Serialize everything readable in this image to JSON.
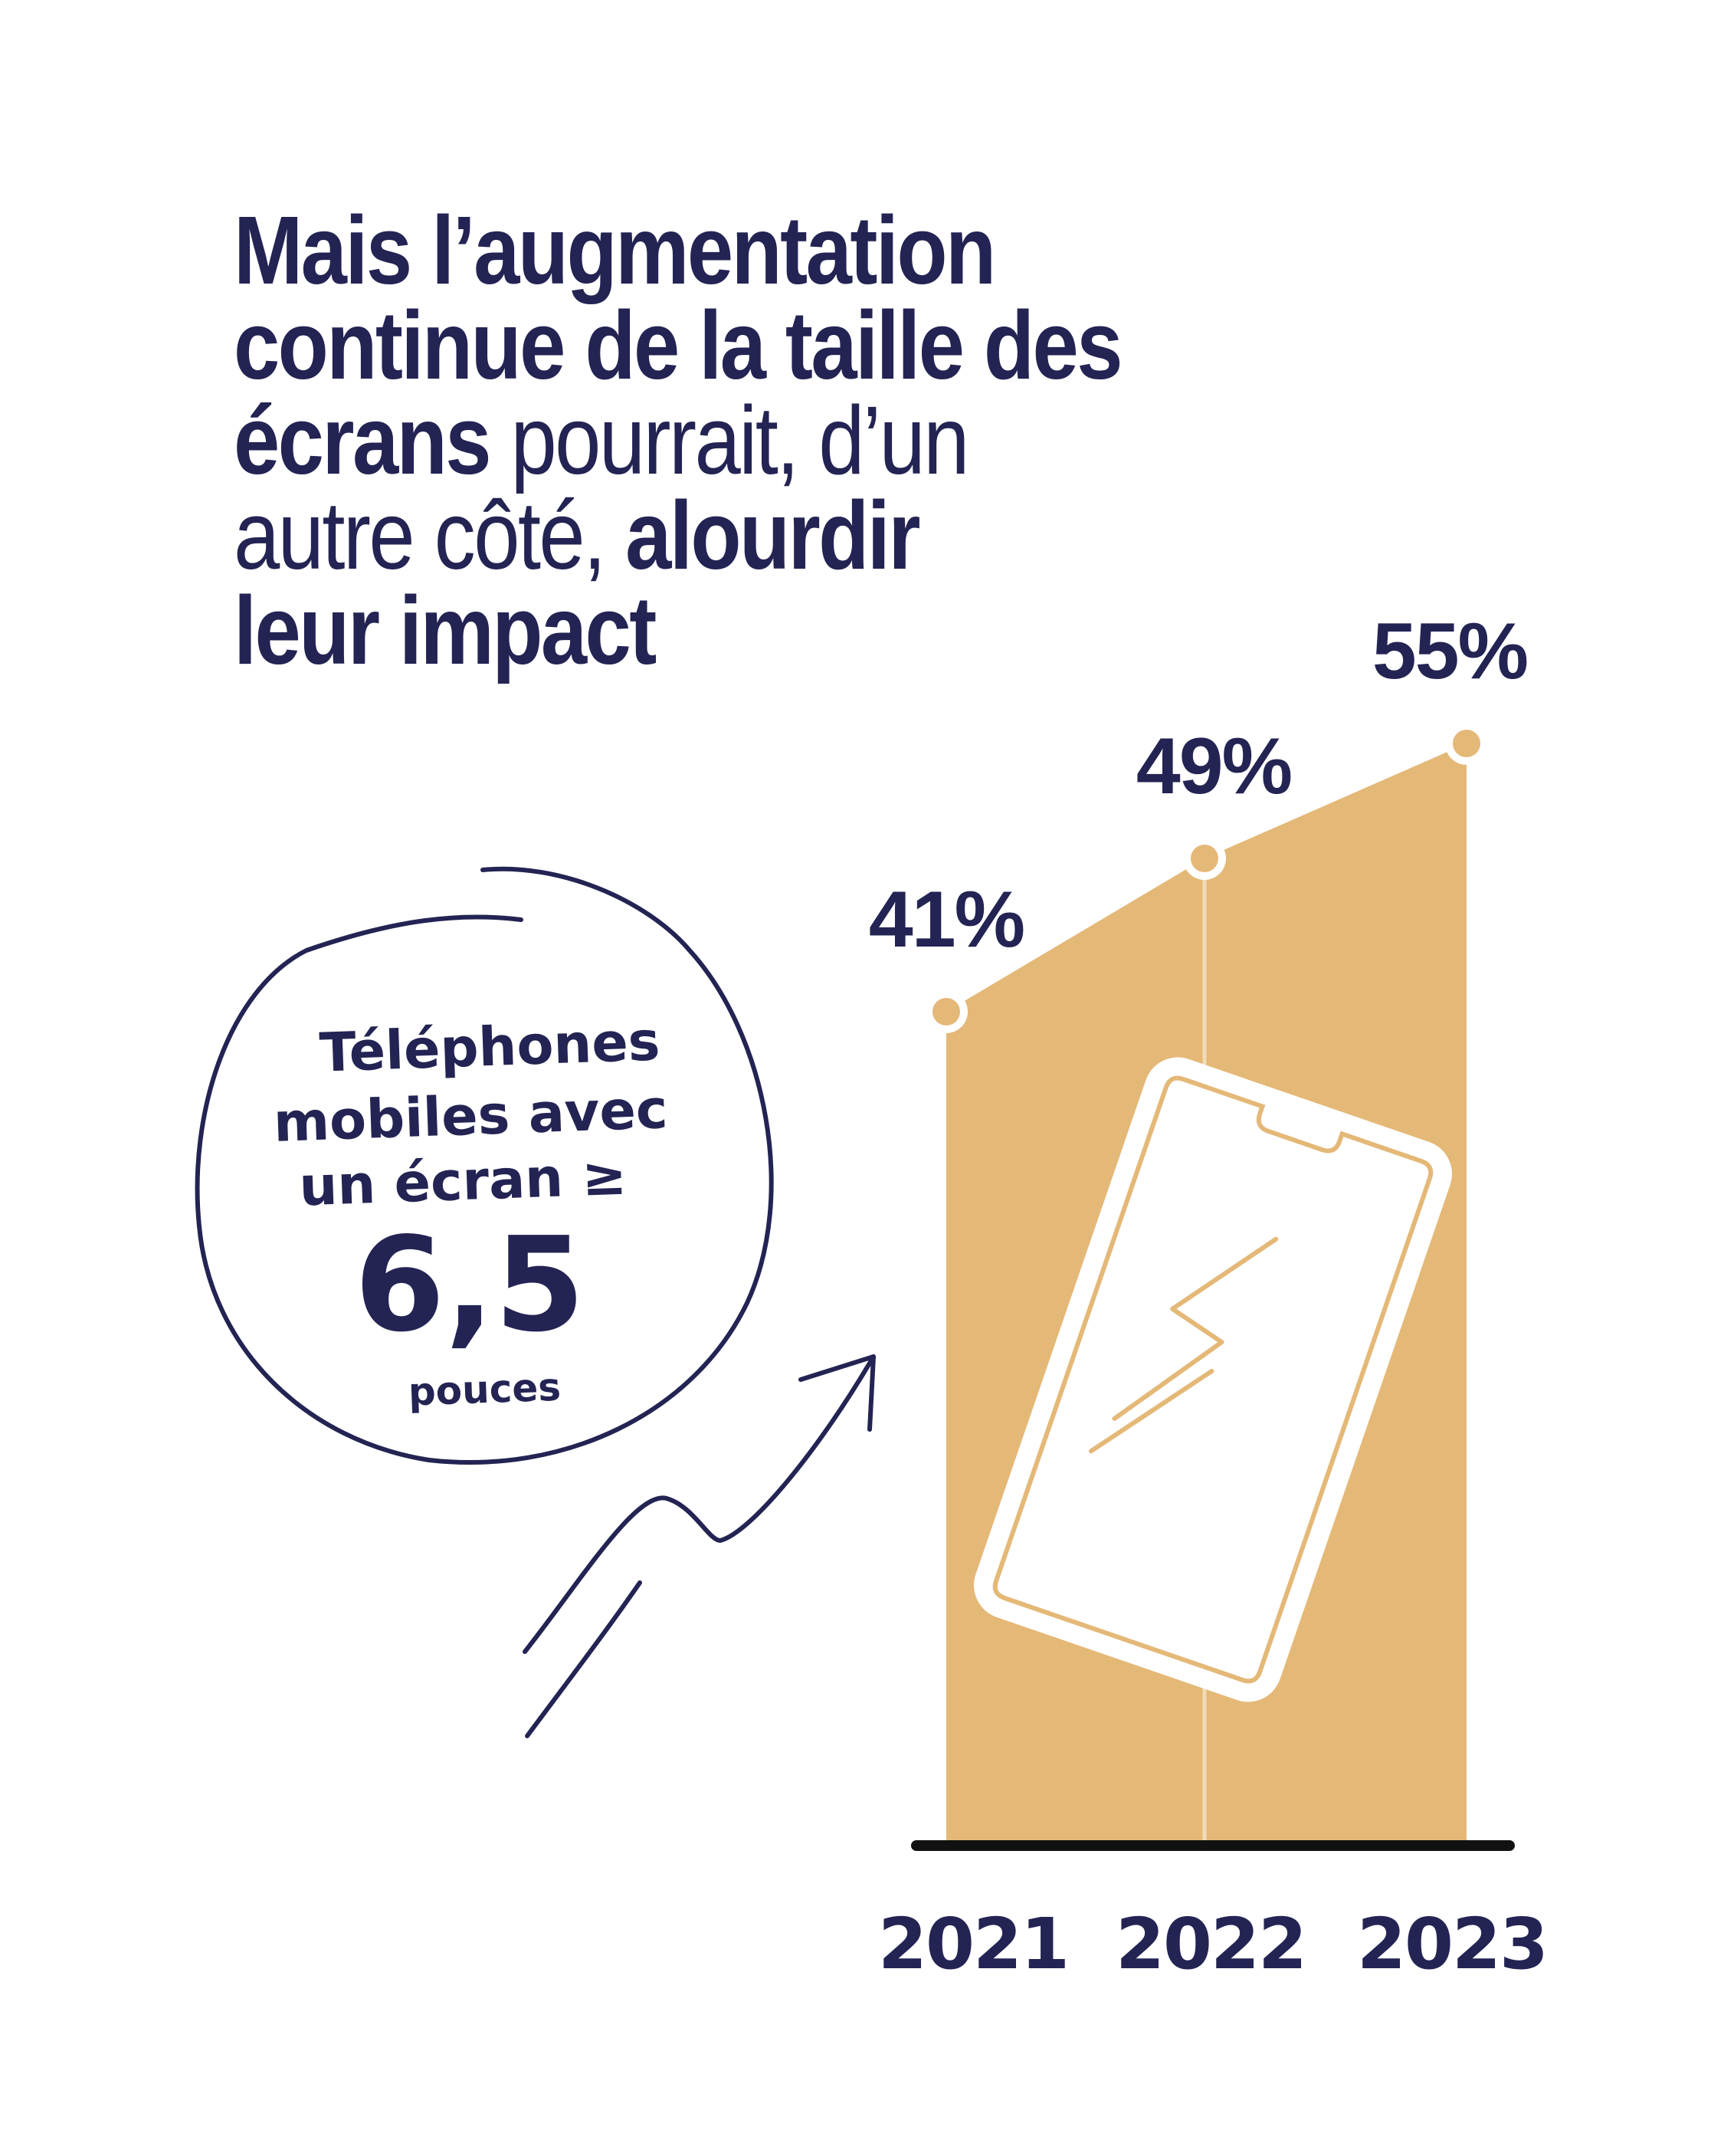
{
  "headline": {
    "line1": "Mais l’augmentation",
    "line2": "continue de la taille des",
    "line3_bold": "écrans",
    "line3_normal": " pourrait, d’un",
    "line4_normal": "autre côté, ",
    "line4_bold": "alourdir",
    "line5": "leur impact"
  },
  "bubble": {
    "line1": "Téléphones",
    "line2": "mobiles avec",
    "line3": "un écran ≥",
    "value": "6,5",
    "unit": "pouces"
  },
  "colors": {
    "navy": "#232453",
    "gold": "#e4b877",
    "axis": "#111111"
  },
  "icons": [
    "trend-arrow-icon",
    "smartphone-icon",
    "lightning-icon"
  ],
  "chart_data": {
    "type": "area",
    "title": "",
    "categories": [
      "2021",
      "2022",
      "2023"
    ],
    "values": [
      41,
      49,
      55
    ],
    "data_labels": [
      "41%",
      "49%",
      "55%"
    ],
    "unit": "%",
    "ylim": [
      0,
      60
    ],
    "grid": false,
    "legend": "none"
  }
}
